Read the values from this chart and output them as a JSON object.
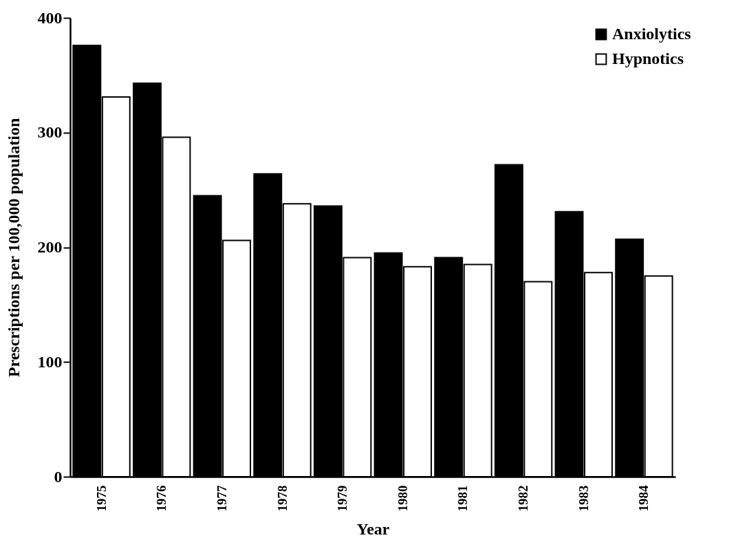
{
  "chart_data": {
    "type": "bar",
    "xlabel": "Year",
    "ylabel": "Prescriptions per 100,000 population",
    "categories": [
      "1975",
      "1976",
      "1977",
      "1978",
      "1979",
      "1980",
      "1981",
      "1982",
      "1983",
      "1984"
    ],
    "series": [
      {
        "name": "Anxiolytics",
        "color": "#000000",
        "values": [
          376,
          343,
          245,
          264,
          236,
          195,
          191,
          272,
          231,
          207
        ]
      },
      {
        "name": "Hypnotics",
        "color": "#ffffff",
        "values": [
          331,
          296,
          206,
          238,
          191,
          183,
          185,
          170,
          178,
          175
        ]
      }
    ],
    "ylim": [
      0,
      400
    ],
    "yticks": [
      0,
      100,
      200,
      300,
      400
    ],
    "grid": false,
    "legend": "top right"
  }
}
